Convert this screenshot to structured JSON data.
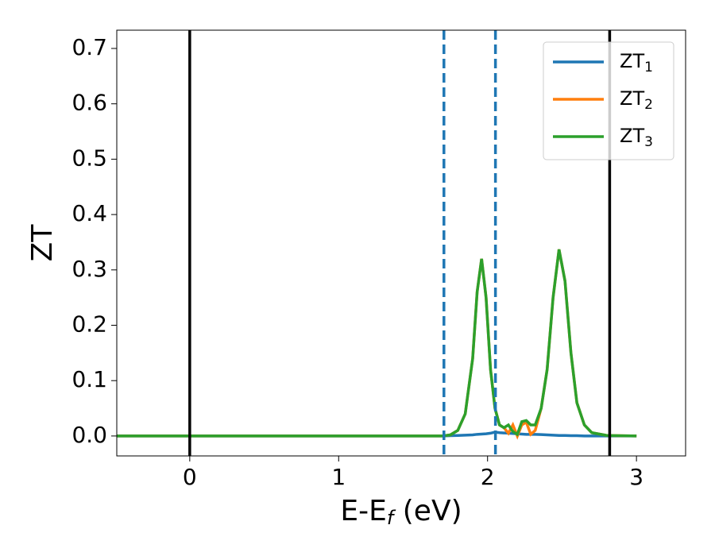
{
  "chart_data": {
    "type": "line",
    "ylabel": "ZT",
    "xlabel": "E-E",
    "xlabel_sub": "f",
    "xlabel_suffix": " (eV)",
    "x": [
      -0.49,
      1.6,
      1.7,
      1.75,
      1.8,
      1.85,
      1.9,
      1.93,
      1.96,
      1.99,
      2.02,
      2.05,
      2.08,
      2.11,
      2.14,
      2.17,
      2.2,
      2.23,
      2.26,
      2.29,
      2.32,
      2.36,
      2.4,
      2.44,
      2.48,
      2.52,
      2.56,
      2.6,
      2.65,
      2.7,
      2.8,
      3.0
    ],
    "series": [
      {
        "name": "ZT",
        "sub": "1",
        "color": "#1f77b4",
        "values": [
          0,
          0,
          0,
          0.0005,
          0.001,
          0.0015,
          0.002,
          0.003,
          0.0035,
          0.004,
          0.005,
          0.007,
          0.006,
          0.0055,
          0.005,
          0.0045,
          0.004,
          0.0035,
          0.003,
          0.003,
          0.003,
          0.0025,
          0.002,
          0.0015,
          0.001,
          0.001,
          0.0005,
          0.0005,
          0,
          0,
          0,
          0
        ]
      },
      {
        "name": "ZT",
        "sub": "2",
        "color": "#ff7f0e",
        "values": [
          0,
          0,
          0,
          0.002,
          0.01,
          0.04,
          0.14,
          0.26,
          0.32,
          0.25,
          0.12,
          0.05,
          0.02,
          0.015,
          0.005,
          0.02,
          0.0,
          0.02,
          0.025,
          0.003,
          0.01,
          0.05,
          0.12,
          0.25,
          0.337,
          0.28,
          0.15,
          0.06,
          0.02,
          0.006,
          0.001,
          0
        ]
      },
      {
        "name": "ZT",
        "sub": "3",
        "color": "#2ca02c",
        "values": [
          0,
          0,
          0,
          0.002,
          0.01,
          0.04,
          0.14,
          0.26,
          0.32,
          0.25,
          0.12,
          0.05,
          0.02,
          0.015,
          0.02,
          0.008,
          0.003,
          0.026,
          0.028,
          0.02,
          0.02,
          0.05,
          0.12,
          0.25,
          0.337,
          0.28,
          0.15,
          0.06,
          0.02,
          0.006,
          0.001,
          0
        ]
      }
    ],
    "vlines": [
      {
        "x": 0,
        "color": "#000000",
        "dashed": false
      },
      {
        "x": 1.707,
        "color": "#1f77b4",
        "dashed": true
      },
      {
        "x": 2.053,
        "color": "#1f77b4",
        "dashed": true
      },
      {
        "x": 2.82,
        "color": "#000000",
        "dashed": false
      }
    ],
    "xlim": [
      -0.49,
      3.33
    ],
    "ylim": [
      -0.036,
      0.733
    ],
    "xticks": [
      0,
      1,
      2,
      3
    ],
    "yticks": [
      {
        "value": 0,
        "label": "0.0"
      },
      0.1,
      0.2,
      0.3,
      0.4,
      0.5,
      0.6,
      0.7
    ],
    "legend": "upper right",
    "grid": false
  }
}
